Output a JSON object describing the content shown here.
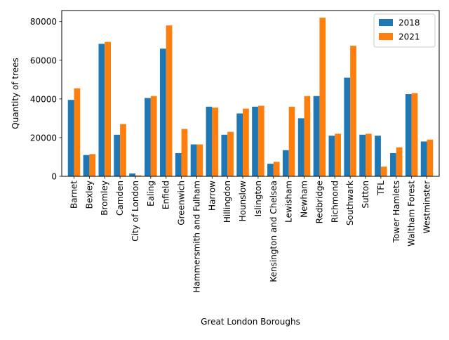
{
  "chart_data": {
    "type": "bar",
    "xlabel": "Great London Boroughs",
    "ylabel": "Quantity of trees",
    "ylim": [
      0,
      85700
    ],
    "yticks": [
      0,
      20000,
      40000,
      60000,
      80000
    ],
    "grid": false,
    "legend_position": "top-right",
    "categories": [
      "Barnet",
      "Bexley",
      "Bromley",
      "Camden",
      "City of London",
      "Ealing",
      "Enfield",
      "Greenwich",
      "Hammersmith and Fulham",
      "Harrow",
      "Hillingdon",
      "Hounslow",
      "Islington",
      "Kensington and Chelsea",
      "Lewisham",
      "Newham",
      "Redbridge",
      "Richmond",
      "Southwark",
      "Sutton",
      "TFL",
      "Tower Hamlets",
      "Waltham Forest",
      "Westminster"
    ],
    "series": [
      {
        "name": "2018",
        "color": "#1f77b4",
        "values": [
          39500,
          11000,
          68500,
          21500,
          1500,
          40500,
          66000,
          12000,
          16500,
          36000,
          21500,
          32500,
          36000,
          6500,
          13500,
          30000,
          41500,
          21000,
          51000,
          21500,
          21000,
          12000,
          42500,
          18000
        ]
      },
      {
        "name": "2021",
        "color": "#ff7f0e",
        "values": [
          45500,
          11500,
          69500,
          27000,
          500,
          41500,
          78000,
          24500,
          16500,
          35500,
          23000,
          35000,
          36500,
          7500,
          36000,
          41500,
          82000,
          22000,
          67500,
          22000,
          5000,
          15000,
          43000,
          19000
        ]
      }
    ]
  }
}
